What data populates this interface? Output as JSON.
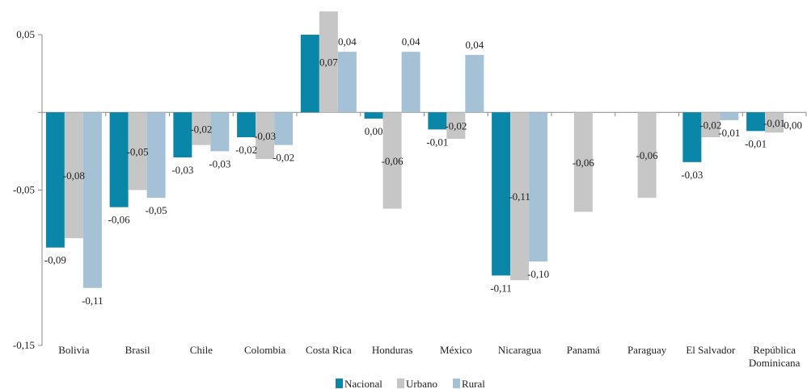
{
  "chart_data": {
    "type": "bar",
    "title": "",
    "xlabel": "",
    "ylabel": "",
    "ylim": [
      -0.15,
      0.05
    ],
    "yticks": [
      "0,05",
      "-0,05",
      "-0,15"
    ],
    "ytick_values": [
      0.05,
      -0.05,
      -0.15
    ],
    "grid": false,
    "legend_position": "bottom",
    "categories": [
      "Bolivia",
      "Brasil",
      "Chile",
      "Colombia",
      "Costa Rica",
      "Honduras",
      "México",
      "Nicaragua",
      "Panamá",
      "Paraguay",
      "El Salvador",
      "República Dominicana"
    ],
    "category_lines": [
      [
        "Bolivia"
      ],
      [
        "Brasil"
      ],
      [
        "Chile"
      ],
      [
        "Colombia"
      ],
      [
        "Costa Rica"
      ],
      [
        "Honduras"
      ],
      [
        "México"
      ],
      [
        "Nicaragua"
      ],
      [
        "Panamá"
      ],
      [
        "Paraguay"
      ],
      [
        "El Salvador"
      ],
      [
        "República",
        "Dominicana"
      ]
    ],
    "series": [
      {
        "name": "Nacional",
        "color": "#0a86a8",
        "values": [
          -0.087,
          -0.061,
          -0.029,
          -0.016,
          0.05,
          -0.004,
          -0.011,
          -0.105,
          null,
          null,
          -0.032,
          -0.012
        ],
        "labels": [
          "-0,09",
          "-0,06",
          "-0,03",
          "-0,02",
          "",
          "0,00",
          "-0,01",
          "-0,11",
          "",
          "",
          "-0,03",
          "-0,01"
        ]
      },
      {
        "name": "Urbano",
        "color": "#c6c6c6",
        "values": [
          -0.081,
          -0.05,
          -0.021,
          -0.03,
          0.065,
          -0.062,
          -0.017,
          -0.108,
          -0.064,
          -0.055,
          -0.016,
          -0.013
        ],
        "labels": [
          "-0,08",
          "-0,05",
          "-0,02",
          "-0,03",
          "0,07",
          "-0,06",
          "-0,02",
          "-0,11",
          "-0,06",
          "-0,06",
          "-0,02",
          "-0,01"
        ]
      },
      {
        "name": "Rural",
        "color": "#a5c1d6",
        "values": [
          -0.113,
          -0.055,
          -0.025,
          -0.021,
          0.039,
          0.039,
          0.037,
          -0.096,
          null,
          null,
          -0.005,
          null
        ],
        "labels": [
          "-0,11",
          "-0,05",
          "-0,03",
          "-0,02",
          "0,04",
          "0,04",
          "0,04",
          "-0,10",
          "",
          "",
          "-0,01",
          "0,00"
        ]
      }
    ]
  }
}
